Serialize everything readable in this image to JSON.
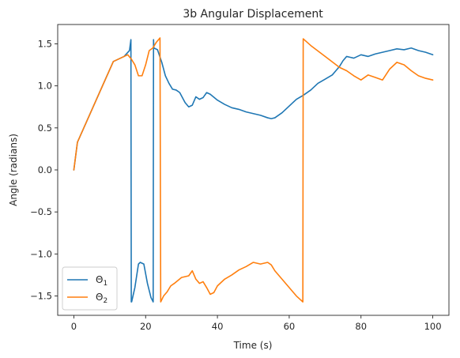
{
  "chart_data": {
    "type": "line",
    "title": "3b Angular Displacement",
    "xlabel": "Time (s)",
    "ylabel": "Angle (radians)",
    "xlim": [
      -4.5,
      104.5
    ],
    "ylim": [
      -1.73,
      1.73
    ],
    "xticks": [
      0,
      20,
      40,
      60,
      80,
      100
    ],
    "yticks": [
      -1.5,
      -1.0,
      -0.5,
      0.0,
      0.5,
      1.0,
      1.5
    ],
    "ytick_labels": [
      "−1.5",
      "−1.0",
      "−0.5",
      "0.0",
      "0.5",
      "1.0",
      "1.5"
    ],
    "grid": false,
    "legend": "lower-left",
    "series": [
      {
        "name": "Θ₁",
        "label_base": "Θ",
        "label_sub": "1",
        "color": "#1f77b4",
        "x": [
          0,
          1,
          11,
          14,
          15.5,
          15.9,
          16.0,
          16.1,
          17,
          18,
          18.5,
          19.5,
          20.5,
          21.5,
          22.1,
          22.2,
          22.3,
          23.3,
          24.5,
          25.5,
          26.5,
          27.5,
          28.5,
          29.5,
          31,
          32,
          33,
          34,
          35,
          36,
          37,
          38,
          40,
          42,
          44,
          46,
          48,
          50,
          52,
          54,
          55,
          56,
          58,
          60,
          62,
          64,
          66,
          68,
          70,
          72,
          73,
          74,
          75,
          76,
          77,
          78,
          80,
          82,
          84,
          86,
          88,
          90,
          92,
          94,
          96,
          98,
          100
        ],
        "y": [
          0.0,
          0.33,
          1.29,
          1.35,
          1.42,
          1.55,
          -1.57,
          -1.57,
          -1.4,
          -1.12,
          -1.1,
          -1.12,
          -1.35,
          -1.52,
          -1.57,
          1.55,
          1.45,
          1.43,
          1.28,
          1.12,
          1.03,
          0.96,
          0.95,
          0.92,
          0.8,
          0.75,
          0.77,
          0.87,
          0.84,
          0.86,
          0.92,
          0.9,
          0.83,
          0.78,
          0.74,
          0.72,
          0.69,
          0.67,
          0.65,
          0.62,
          0.61,
          0.62,
          0.68,
          0.76,
          0.84,
          0.89,
          0.95,
          1.03,
          1.08,
          1.13,
          1.18,
          1.23,
          1.3,
          1.35,
          1.34,
          1.33,
          1.37,
          1.35,
          1.38,
          1.4,
          1.42,
          1.44,
          1.43,
          1.45,
          1.42,
          1.4,
          1.37
        ]
      },
      {
        "name": "Θ₂",
        "label_base": "Θ",
        "label_sub": "2",
        "color": "#ff7f0e",
        "x": [
          0,
          1,
          11,
          15,
          16,
          17,
          18,
          19,
          20,
          21,
          22,
          23,
          24,
          24.2,
          25,
          26,
          27,
          28,
          30,
          32,
          33,
          34,
          35,
          36,
          37,
          38,
          39,
          40,
          42,
          44,
          46,
          48,
          50,
          52,
          54,
          55,
          56,
          58,
          60,
          62,
          63.8,
          63.9,
          66,
          70,
          74,
          76,
          78,
          80,
          82,
          84,
          86,
          88,
          90,
          92,
          94,
          96,
          98,
          100
        ],
        "y": [
          0.0,
          0.33,
          1.29,
          1.37,
          1.32,
          1.25,
          1.12,
          1.12,
          1.25,
          1.42,
          1.45,
          1.52,
          1.57,
          -1.57,
          -1.5,
          -1.45,
          -1.38,
          -1.35,
          -1.28,
          -1.26,
          -1.2,
          -1.3,
          -1.35,
          -1.33,
          -1.4,
          -1.48,
          -1.46,
          -1.38,
          -1.3,
          -1.25,
          -1.19,
          -1.15,
          -1.1,
          -1.12,
          -1.1,
          -1.13,
          -1.2,
          -1.3,
          -1.4,
          -1.5,
          -1.57,
          1.56,
          1.48,
          1.35,
          1.22,
          1.18,
          1.12,
          1.07,
          1.13,
          1.1,
          1.07,
          1.2,
          1.28,
          1.25,
          1.18,
          1.12,
          1.09,
          1.07
        ]
      }
    ]
  }
}
